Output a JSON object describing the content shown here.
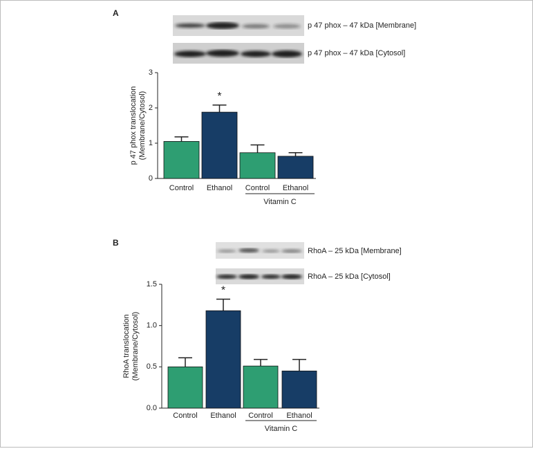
{
  "chart_data": [
    {
      "type": "bar",
      "panel": "A",
      "blots": [
        "p 47 phox – 47 kDa [Membrane]",
        "p 47 phox – 47 kDa [Cytosol]"
      ],
      "y_label": [
        "p 47 phox translocation",
        "(Membrane/Cytosol)"
      ],
      "categories": [
        "Control",
        "Ethanol",
        "Control",
        "Ethanol"
      ],
      "values": [
        1.05,
        1.88,
        0.73,
        0.63
      ],
      "errors": [
        0.13,
        0.2,
        0.22,
        0.1
      ],
      "colors": [
        "#2e9e72",
        "#173d66",
        "#2e9e72",
        "#173d66"
      ],
      "annotations": [
        "*"
      ],
      "annotation_category": 1,
      "group_label": "Vitamin C",
      "ylim": [
        0,
        3
      ],
      "yticks": [
        0,
        1,
        2,
        3
      ]
    },
    {
      "type": "bar",
      "panel": "B",
      "blots": [
        "RhoA – 25 kDa [Membrane]",
        "RhoA – 25 kDa [Cytosol]"
      ],
      "y_label": [
        "RhoA translocation",
        "(Membrane/Cytosol)"
      ],
      "categories": [
        "Control",
        "Ethanol",
        "Control",
        "Ethanol"
      ],
      "values": [
        0.5,
        1.18,
        0.51,
        0.45
      ],
      "errors": [
        0.11,
        0.14,
        0.08,
        0.14
      ],
      "colors": [
        "#2e9e72",
        "#173d66",
        "#2e9e72",
        "#173d66"
      ],
      "annotations": [
        "*"
      ],
      "annotation_category": 1,
      "group_label": "Vitamin C",
      "ylim": [
        0,
        1.5
      ],
      "yticks": [
        {
          "value": 0,
          "label": "0.0"
        },
        0.5,
        {
          "value": 1,
          "label": "1.0"
        },
        1.5
      ]
    }
  ]
}
